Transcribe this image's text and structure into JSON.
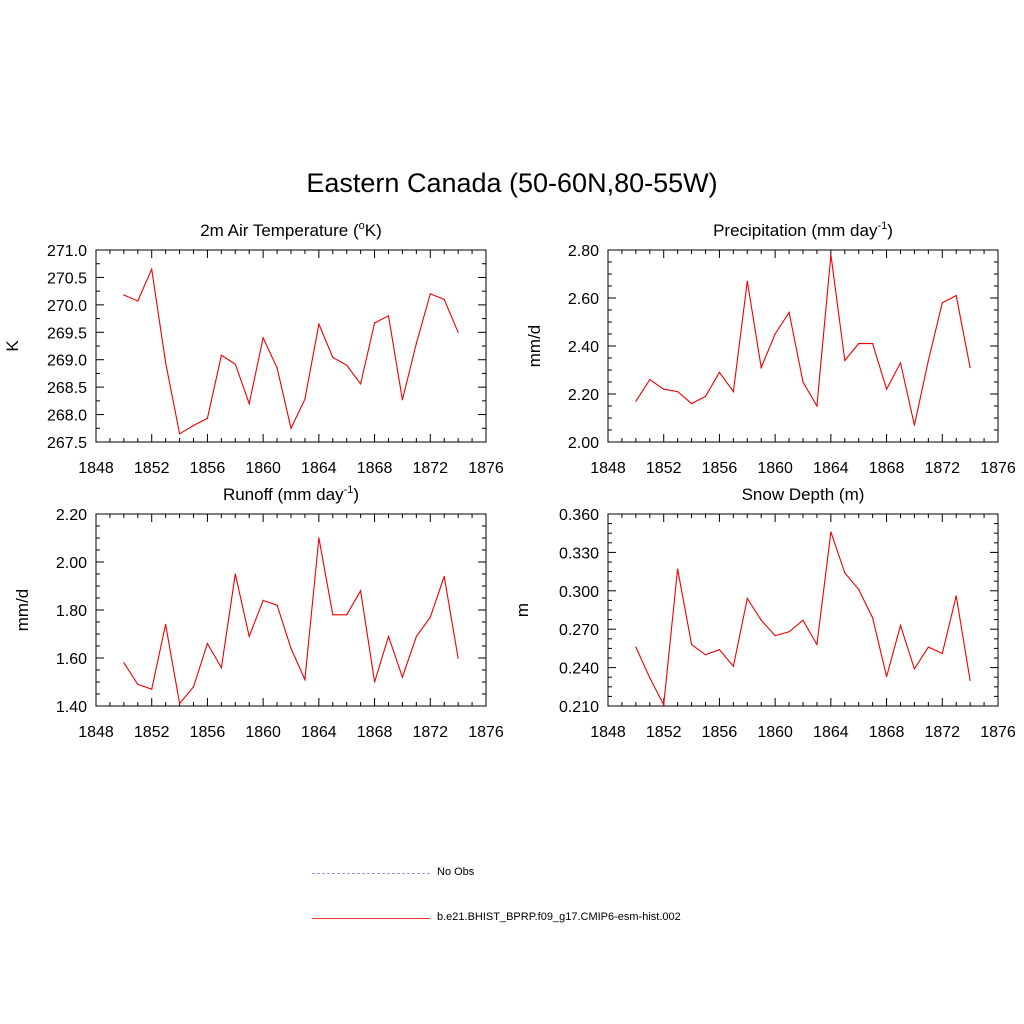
{
  "title": "Eastern Canada (50-60N,80-55W)",
  "colors": {
    "series": "#ee0000",
    "obs": "#9999ee",
    "axis": "#000000"
  },
  "legend": {
    "obs_label": "No Obs",
    "model_label": "b.e21.BHIST_BPRP.f09_g17.CMIP6-esm-hist.002"
  },
  "chart_data": [
    {
      "type": "line",
      "title": "2m Air Temperature (°K)",
      "title_main": "2m Air Temperature (",
      "title_sup": "o",
      "title_tail": "K)",
      "ylabel": "K",
      "xlim": [
        1848,
        1876
      ],
      "ylim": [
        267.5,
        271.0
      ],
      "xticks": [
        1848,
        1852,
        1856,
        1860,
        1864,
        1868,
        1872,
        1876
      ],
      "yticks": [
        "267.5",
        "268.0",
        "268.5",
        "269.0",
        "269.5",
        "270.0",
        "270.5",
        "271.0"
      ],
      "x": [
        1850,
        1851,
        1852,
        1853,
        1854,
        1855,
        1856,
        1857,
        1858,
        1859,
        1860,
        1861,
        1862,
        1863,
        1864,
        1865,
        1866,
        1867,
        1868,
        1869,
        1870,
        1871,
        1872,
        1873,
        1874
      ],
      "values": [
        270.18,
        270.07,
        270.65,
        268.95,
        267.65,
        267.8,
        267.93,
        269.08,
        268.92,
        268.2,
        269.4,
        268.85,
        267.75,
        268.28,
        269.65,
        269.04,
        268.9,
        268.56,
        269.67,
        269.8,
        268.27,
        269.3,
        270.2,
        270.1,
        269.5
      ]
    },
    {
      "type": "line",
      "title": "Precipitation (mm day-1)",
      "title_main": "Precipitation (mm day",
      "title_sup": "-1",
      "title_tail": ")",
      "ylabel": "mm/d",
      "xlim": [
        1848,
        1876
      ],
      "ylim": [
        2.0,
        2.8
      ],
      "xticks": [
        1848,
        1852,
        1856,
        1860,
        1864,
        1868,
        1872,
        1876
      ],
      "yticks": [
        "2.00",
        "2.20",
        "2.40",
        "2.60",
        "2.80"
      ],
      "x": [
        1850,
        1851,
        1852,
        1853,
        1854,
        1855,
        1856,
        1857,
        1858,
        1859,
        1860,
        1861,
        1862,
        1863,
        1864,
        1865,
        1866,
        1867,
        1868,
        1869,
        1870,
        1871,
        1872,
        1873,
        1874
      ],
      "values": [
        2.17,
        2.26,
        2.22,
        2.21,
        2.16,
        2.19,
        2.29,
        2.21,
        2.67,
        2.31,
        2.45,
        2.54,
        2.25,
        2.15,
        2.78,
        2.34,
        2.41,
        2.41,
        2.22,
        2.33,
        2.07,
        2.34,
        2.58,
        2.61,
        2.31
      ]
    },
    {
      "type": "line",
      "title": "Runoff (mm day-1)",
      "title_main": "Runoff (mm day",
      "title_sup": "-1",
      "title_tail": ")",
      "ylabel": "mm/d",
      "xlim": [
        1848,
        1876
      ],
      "ylim": [
        1.4,
        2.2
      ],
      "xticks": [
        1848,
        1852,
        1856,
        1860,
        1864,
        1868,
        1872,
        1876
      ],
      "yticks": [
        "1.40",
        "1.60",
        "1.80",
        "2.00",
        "2.20"
      ],
      "x": [
        1850,
        1851,
        1852,
        1853,
        1854,
        1855,
        1856,
        1857,
        1858,
        1859,
        1860,
        1861,
        1862,
        1863,
        1864,
        1865,
        1866,
        1867,
        1868,
        1869,
        1870,
        1871,
        1872,
        1873,
        1874
      ],
      "values": [
        1.58,
        1.49,
        1.47,
        1.74,
        1.41,
        1.48,
        1.66,
        1.56,
        1.95,
        1.69,
        1.84,
        1.82,
        1.64,
        1.51,
        2.1,
        1.78,
        1.78,
        1.88,
        1.5,
        1.69,
        1.52,
        1.69,
        1.77,
        1.94,
        1.6
      ]
    },
    {
      "type": "line",
      "title": "Snow Depth (m)",
      "title_main": "Snow Depth (m)",
      "title_sup": "",
      "title_tail": "",
      "ylabel": "m",
      "xlim": [
        1848,
        1876
      ],
      "ylim": [
        0.21,
        0.36
      ],
      "xticks": [
        1848,
        1852,
        1856,
        1860,
        1864,
        1868,
        1872,
        1876
      ],
      "yticks": [
        "0.210",
        "0.240",
        "0.270",
        "0.300",
        "0.330",
        "0.360"
      ],
      "x": [
        1850,
        1851,
        1852,
        1853,
        1854,
        1855,
        1856,
        1857,
        1858,
        1859,
        1860,
        1861,
        1862,
        1863,
        1864,
        1865,
        1866,
        1867,
        1868,
        1869,
        1870,
        1871,
        1872,
        1873,
        1874
      ],
      "values": [
        0.256,
        0.232,
        0.211,
        0.317,
        0.258,
        0.25,
        0.254,
        0.241,
        0.294,
        0.277,
        0.265,
        0.268,
        0.277,
        0.258,
        0.346,
        0.314,
        0.301,
        0.279,
        0.233,
        0.273,
        0.239,
        0.256,
        0.251,
        0.296,
        0.23
      ]
    }
  ]
}
